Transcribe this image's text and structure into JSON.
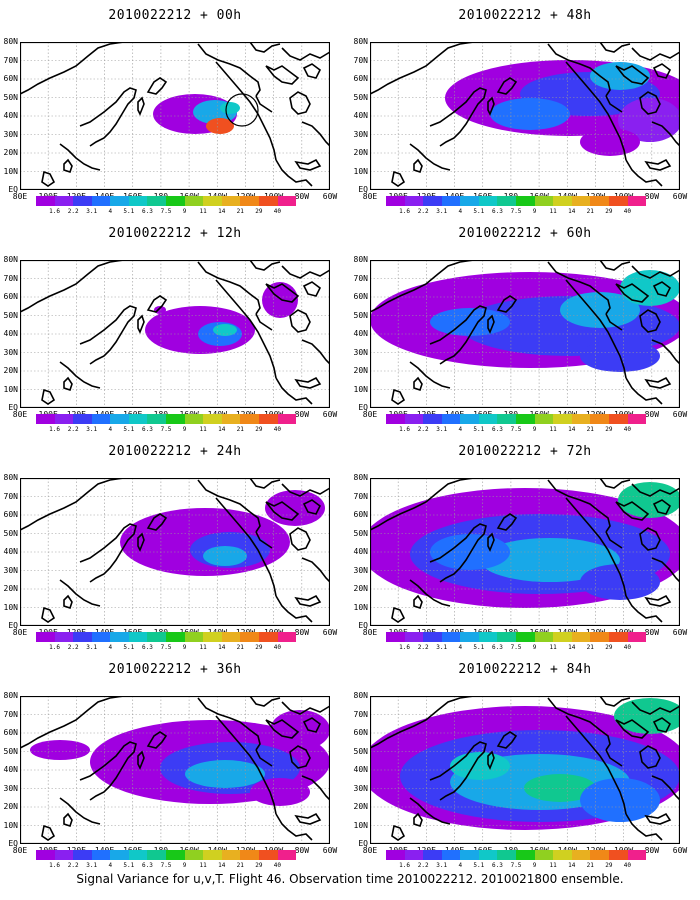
{
  "footer": "Signal Variance for u,v,T. Flight 46. Observation time 2010022212. 2010021800 ensemble.",
  "lat_labels": [
    "80N",
    "70N",
    "60N",
    "50N",
    "40N",
    "30N",
    "20N",
    "10N",
    "EQ"
  ],
  "lon_labels": [
    "80E",
    "100E",
    "120E",
    "140E",
    "160E",
    "180",
    "160W",
    "140W",
    "120W",
    "100W",
    "80W",
    "60W"
  ],
  "colorbar": {
    "colors": [
      "#a000e0",
      "#8a20f0",
      "#3c3cf5",
      "#2070ff",
      "#18a8e8",
      "#10c8c8",
      "#10c890",
      "#18c818",
      "#90d020",
      "#d0d020",
      "#e8b020",
      "#f08818",
      "#f05020",
      "#f0208c"
    ],
    "labels": [
      "1.6",
      "2.2",
      "3.1",
      "4",
      "5.1",
      "6.3",
      "7.5",
      "9",
      "11",
      "14",
      "21",
      "29",
      "40"
    ]
  },
  "panels": [
    {
      "title": "2010022212 + 00h",
      "level": 1
    },
    {
      "title": "2010022212 + 48h",
      "level": 5
    },
    {
      "title": "2010022212 + 12h",
      "level": 2
    },
    {
      "title": "2010022212 + 60h",
      "level": 6
    },
    {
      "title": "2010022212 + 24h",
      "level": 3
    },
    {
      "title": "2010022212 + 72h",
      "level": 7
    },
    {
      "title": "2010022212 + 36h",
      "level": 4
    },
    {
      "title": "2010022212 + 84h",
      "level": 8
    }
  ]
}
